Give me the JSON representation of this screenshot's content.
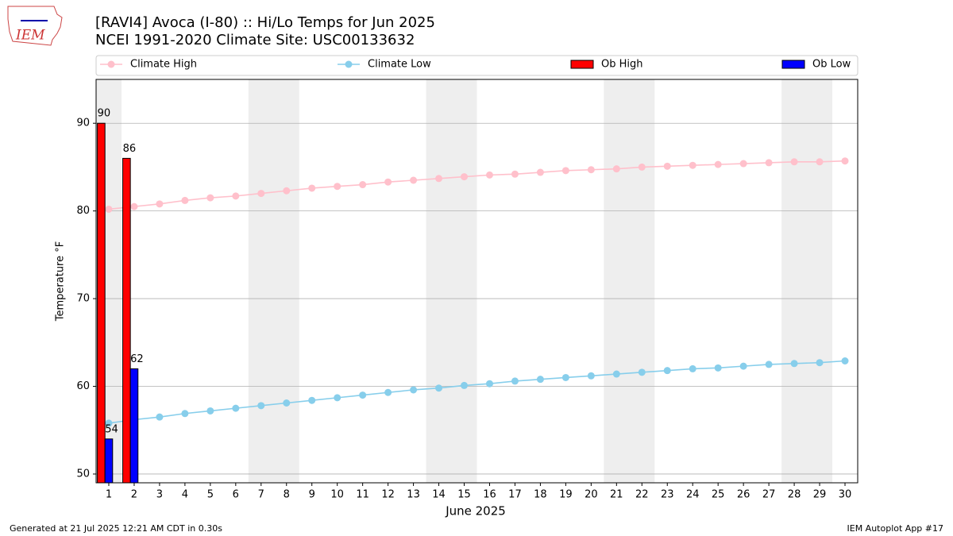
{
  "chart_data": {
    "type": "bar",
    "title": "[RAVI4] Avoca (I-80) :: Hi/Lo Temps for Jun 2025",
    "subtitle": "NCEI 1991-2020 Climate Site: USC00133632",
    "logo_text": "IEM",
    "x_label": "June 2025",
    "y_label": "Temperature °F",
    "footer_left": "Generated at 21 Jul 2025 12:21 AM CDT in 0.30s",
    "footer_right": "IEM Autoplot App #17",
    "x": [
      1,
      2,
      3,
      4,
      5,
      6,
      7,
      8,
      9,
      10,
      11,
      12,
      13,
      14,
      15,
      16,
      17,
      18,
      19,
      20,
      21,
      22,
      23,
      24,
      25,
      26,
      27,
      28,
      29,
      30
    ],
    "xlim": [
      0.5,
      30.5
    ],
    "xticks": [
      1,
      2,
      3,
      4,
      5,
      6,
      7,
      8,
      9,
      10,
      11,
      12,
      13,
      14,
      15,
      16,
      17,
      18,
      19,
      20,
      21,
      22,
      23,
      24,
      25,
      26,
      27,
      28,
      29,
      30
    ],
    "ylim": [
      49,
      95
    ],
    "yticks": [
      50,
      60,
      70,
      80,
      90
    ],
    "grid": true,
    "shaded_spans": [
      [
        0.5,
        1.5
      ],
      [
        6.5,
        8.5
      ],
      [
        13.5,
        15.5
      ],
      [
        20.5,
        22.5
      ],
      [
        27.5,
        29.5
      ]
    ],
    "legend": "top",
    "series": [
      {
        "name": "Climate High",
        "type": "line",
        "color": "#ffc0cb",
        "values": [
          80.2,
          80.5,
          80.8,
          81.2,
          81.5,
          81.7,
          82.0,
          82.3,
          82.6,
          82.8,
          83.0,
          83.3,
          83.5,
          83.7,
          83.9,
          84.1,
          84.2,
          84.4,
          84.6,
          84.7,
          84.8,
          85.0,
          85.1,
          85.2,
          85.3,
          85.4,
          85.5,
          85.6,
          85.6,
          85.7
        ]
      },
      {
        "name": "Climate Low",
        "type": "line",
        "color": "#87ceeb",
        "values": [
          55.8,
          56.2,
          56.5,
          56.9,
          57.2,
          57.5,
          57.8,
          58.1,
          58.4,
          58.7,
          59.0,
          59.3,
          59.6,
          59.8,
          60.1,
          60.3,
          60.6,
          60.8,
          61.0,
          61.2,
          61.4,
          61.6,
          61.8,
          62.0,
          62.1,
          62.3,
          62.5,
          62.6,
          62.7,
          62.9
        ]
      },
      {
        "name": "Ob High",
        "type": "bar",
        "color": "#ff0000",
        "values": [
          90,
          86,
          null,
          null,
          null,
          null,
          null,
          null,
          null,
          null,
          null,
          null,
          null,
          null,
          null,
          null,
          null,
          null,
          null,
          null,
          null,
          null,
          null,
          null,
          null,
          null,
          null,
          null,
          null,
          null
        ]
      },
      {
        "name": "Ob Low",
        "type": "bar",
        "color": "#0000ff",
        "values": [
          54,
          62,
          null,
          null,
          null,
          null,
          null,
          null,
          null,
          null,
          null,
          null,
          null,
          null,
          null,
          null,
          null,
          null,
          null,
          null,
          null,
          null,
          null,
          null,
          null,
          null,
          null,
          null,
          null,
          null
        ]
      }
    ]
  }
}
